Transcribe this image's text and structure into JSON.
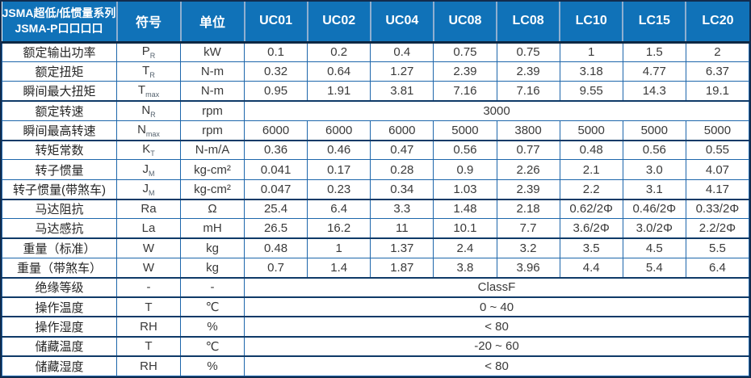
{
  "table": {
    "corner": {
      "line1": "JSMA超低/低惯量系列",
      "line2": "JSMA-P口口口口"
    },
    "symbol_header": "符号",
    "unit_header": "单位",
    "columns": [
      "UC01",
      "UC02",
      "UC04",
      "UC08",
      "LC08",
      "LC10",
      "LC15",
      "LC20"
    ],
    "colors": {
      "header_bg": "#1072b8",
      "header_text": "#ffffff",
      "grid_line": "#1d66ab",
      "group_line": "#0f3a68",
      "outer_border": "#122c4d",
      "cell_text": "#3a3a3a"
    },
    "rows": [
      {
        "label": "额定输出功率",
        "symbol": "P",
        "symbol_sub": "R",
        "unit": "kW",
        "values": [
          "0.1",
          "0.2",
          "0.4",
          "0.75",
          "0.75",
          "1",
          "1.5",
          "2"
        ],
        "group_end": false
      },
      {
        "label": "额定扭矩",
        "symbol": "T",
        "symbol_sub": "R",
        "unit": "N-m",
        "values": [
          "0.32",
          "0.64",
          "1.27",
          "2.39",
          "2.39",
          "3.18",
          "4.77",
          "6.37"
        ],
        "group_end": false
      },
      {
        "label": "瞬间最大扭矩",
        "symbol": "T",
        "symbol_sub": "max",
        "unit": "N-m",
        "values": [
          "0.95",
          "1.91",
          "3.81",
          "7.16",
          "7.16",
          "9.55",
          "14.3",
          "19.1"
        ],
        "group_end": true
      },
      {
        "label": "额定转速",
        "symbol": "N",
        "symbol_sub": "R",
        "unit": "rpm",
        "merged": "3000",
        "group_end": false
      },
      {
        "label": "瞬间最高转速",
        "symbol": "N",
        "symbol_sub": "max",
        "unit": "rpm",
        "values": [
          "6000",
          "6000",
          "6000",
          "5000",
          "3800",
          "5000",
          "5000",
          "5000"
        ],
        "group_end": true
      },
      {
        "label": "转矩常数",
        "symbol": "K",
        "symbol_sub": "T",
        "unit": "N-m/A",
        "values": [
          "0.36",
          "0.46",
          "0.47",
          "0.56",
          "0.77",
          "0.48",
          "0.56",
          "0.55"
        ],
        "group_end": false
      },
      {
        "label": "转子惯量",
        "symbol": "J",
        "symbol_sub": "M",
        "unit": "kg-cm²",
        "values": [
          "0.041",
          "0.17",
          "0.28",
          "0.9",
          "2.26",
          "2.1",
          "3.0",
          "4.07"
        ],
        "group_end": false
      },
      {
        "label": "转子惯量(带煞车)",
        "symbol": "J",
        "symbol_sub": "M",
        "unit": "kg-cm²",
        "values": [
          "0.047",
          "0.23",
          "0.34",
          "1.03",
          "2.39",
          "2.2",
          "3.1",
          "4.17"
        ],
        "group_end": true
      },
      {
        "label": "马达阻抗",
        "symbol": "Ra",
        "symbol_sub": "",
        "unit": "Ω",
        "values": [
          "25.4",
          "6.4",
          "3.3",
          "1.48",
          "2.18",
          "0.62/2Φ",
          "0.46/2Φ",
          "0.33/2Φ"
        ],
        "group_end": false
      },
      {
        "label": "马达感抗",
        "symbol": "La",
        "symbol_sub": "",
        "unit": "mH",
        "values": [
          "26.5",
          "16.2",
          "11",
          "10.1",
          "7.7",
          "3.6/2Φ",
          "3.0/2Φ",
          "2.2/2Φ"
        ],
        "group_end": true
      },
      {
        "label": "重量（标准）",
        "symbol": "W",
        "symbol_sub": "",
        "unit": "kg",
        "values": [
          "0.48",
          "1",
          "1.37",
          "2.4",
          "3.2",
          "3.5",
          "4.5",
          "5.5"
        ],
        "group_end": false
      },
      {
        "label": "重量（带煞车）",
        "symbol": "W",
        "symbol_sub": "",
        "unit": "kg",
        "values": [
          "0.7",
          "1.4",
          "1.87",
          "3.8",
          "3.96",
          "4.4",
          "5.4",
          "6.4"
        ],
        "group_end": true
      },
      {
        "label": "绝缘等级",
        "symbol": "-",
        "symbol_sub": "",
        "unit": "-",
        "merged": "ClassF",
        "group_end": true
      },
      {
        "label": "操作温度",
        "symbol": "T",
        "symbol_sub": "",
        "unit": "℃",
        "merged": "0 ~ 40",
        "group_end": true
      },
      {
        "label": "操作湿度",
        "symbol": "RH",
        "symbol_sub": "",
        "unit": "%",
        "merged": "< 80",
        "group_end": true
      },
      {
        "label": "储藏温度",
        "symbol": "T",
        "symbol_sub": "",
        "unit": "℃",
        "merged": "-20 ~ 60",
        "group_end": true
      },
      {
        "label": "储藏湿度",
        "symbol": "RH",
        "symbol_sub": "",
        "unit": "%",
        "merged": "< 80",
        "group_end": false
      }
    ]
  }
}
